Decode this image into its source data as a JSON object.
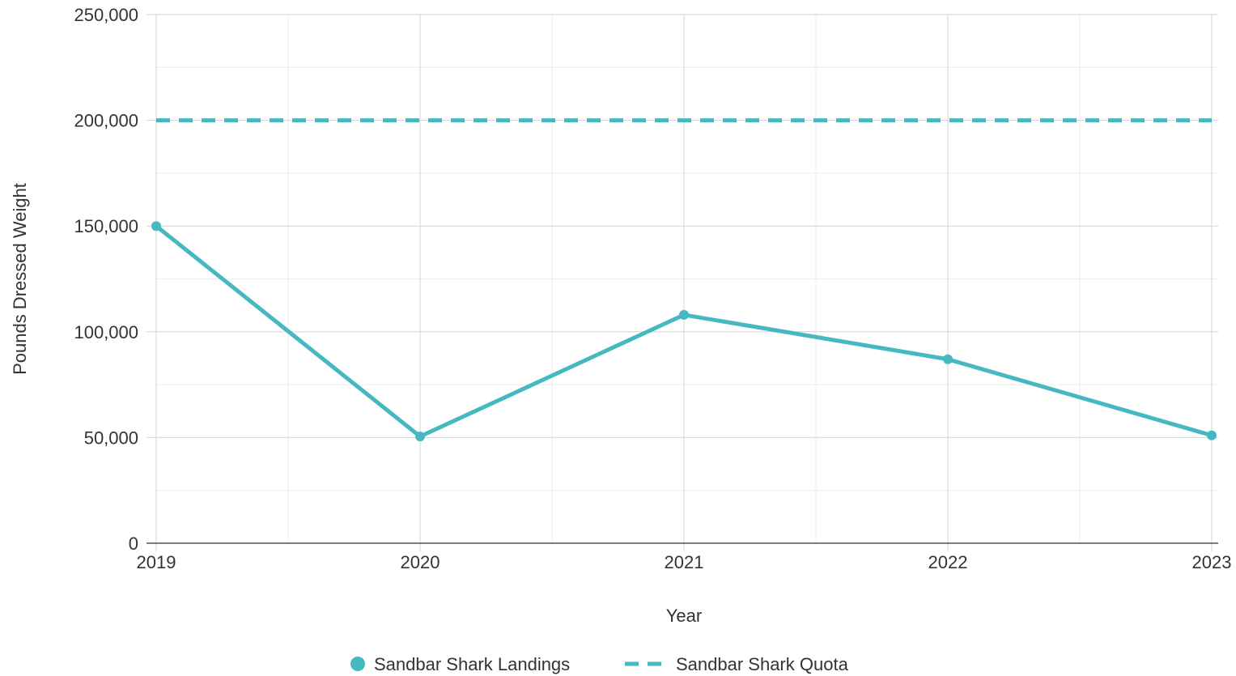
{
  "chart_data": {
    "type": "line",
    "title": "",
    "xlabel": "Year",
    "ylabel": "Pounds Dressed Weight",
    "x": [
      2019,
      2020,
      2021,
      2022,
      2023
    ],
    "x_tick_labels": [
      "2019",
      "2020",
      "2021",
      "2022",
      "2023"
    ],
    "y_tick_labels": [
      "0",
      "50,000",
      "100,000",
      "150,000",
      "200,000",
      "250,000"
    ],
    "y_ticks": [
      0,
      50000,
      100000,
      150000,
      200000,
      250000
    ],
    "ylim": [
      0,
      250000
    ],
    "grid": true,
    "legend_position": "bottom-center",
    "series": [
      {
        "name": "Sandbar Shark Landings",
        "values": [
          150000,
          50500,
          108000,
          87000,
          51000
        ],
        "style": "solid",
        "markers": true,
        "color": "#45b8c1"
      },
      {
        "name": "Sandbar Shark Quota",
        "values": [
          200000,
          200000,
          200000,
          200000,
          200000
        ],
        "style": "dashed",
        "markers": false,
        "color": "#45b8c1"
      }
    ]
  }
}
